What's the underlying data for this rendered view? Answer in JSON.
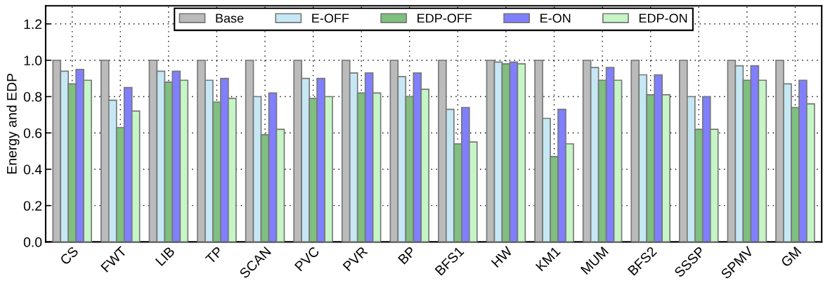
{
  "chart_data": {
    "type": "bar",
    "ylabel": "Energy and EDP",
    "categories": [
      "CS",
      "FWT",
      "LIB",
      "TP",
      "SCAN",
      "PVC",
      "PVR",
      "BP",
      "BFS1",
      "HW",
      "KM1",
      "MUM",
      "BFS2",
      "SSSP",
      "SPMV",
      "GM"
    ],
    "series": [
      {
        "name": "Base",
        "color": "#bbbbbb",
        "values": [
          1,
          1,
          1,
          1,
          1,
          1,
          1,
          1,
          1,
          1,
          1,
          1,
          1,
          1,
          1,
          1
        ]
      },
      {
        "name": "E-OFF",
        "color": "#c6e8f5",
        "values": [
          0.94,
          0.78,
          0.94,
          0.89,
          0.8,
          0.9,
          0.93,
          0.91,
          0.73,
          0.99,
          0.68,
          0.96,
          0.92,
          0.8,
          0.97,
          0.87
        ]
      },
      {
        "name": "EDP-OFF",
        "color": "#7fbf7f",
        "values": [
          0.87,
          0.63,
          0.88,
          0.77,
          0.59,
          0.79,
          0.82,
          0.8,
          0.54,
          0.98,
          0.47,
          0.89,
          0.81,
          0.62,
          0.89,
          0.74
        ]
      },
      {
        "name": "E-ON",
        "color": "#7f7fff",
        "values": [
          0.95,
          0.85,
          0.94,
          0.9,
          0.82,
          0.9,
          0.93,
          0.93,
          0.74,
          0.99,
          0.73,
          0.96,
          0.92,
          0.8,
          0.97,
          0.89
        ]
      },
      {
        "name": "EDP-ON",
        "color": "#c6f5c6",
        "values": [
          0.89,
          0.72,
          0.89,
          0.79,
          0.62,
          0.8,
          0.82,
          0.84,
          0.55,
          0.98,
          0.54,
          0.89,
          0.81,
          0.62,
          0.89,
          0.76
        ]
      }
    ],
    "ylim": [
      0,
      1.3
    ],
    "yticks": [
      {
        "value": 0,
        "label": "0.0"
      },
      0.2,
      0.4,
      0.6,
      0.8,
      {
        "value": 1,
        "label": "1.0"
      },
      1.2
    ],
    "grid": true,
    "legend": "top"
  }
}
